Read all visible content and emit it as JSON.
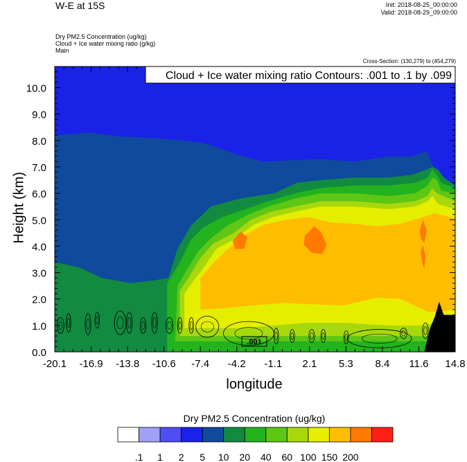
{
  "header": {
    "title": "W-E at 15S",
    "init": "Init: 2018-08-25_00:00:00",
    "valid": "Valid: 2018-08-29_09:00:00"
  },
  "fields": {
    "line1": "Dry PM2.5 Concentration   (ug/kg)",
    "line2": "Cloud + Ice water mixing ratio   (g/kg)",
    "line3": "Main"
  },
  "cross_section": "Cross-Section: (130,279) to (454,279)",
  "contour_box": "Cloud + Ice water mixing ratio Contours: .001 to .1 by .099",
  "contour_label": ".001",
  "chart_data": {
    "type": "heatmap",
    "xlabel": "longitude",
    "ylabel": "Height (km)",
    "x_ticks": [
      "-20.1",
      "-16.9",
      "-13.8",
      "-10.6",
      "-7.4",
      "-4.2",
      "-1.1",
      "2.1",
      "5.3",
      "8.4",
      "11.6",
      "14.8"
    ],
    "y_ticks": [
      "0.0",
      "1.0",
      "2.0",
      "3.0",
      "4.0",
      "5.0",
      "6.0",
      "7.0",
      "8.0",
      "9.0",
      "10.0"
    ],
    "xlim": [
      -20.1,
      14.8
    ],
    "ylim": [
      0,
      10.8
    ],
    "colorbar": {
      "title": "Dry PM2.5 Concentration  (ug/kg)",
      "levels": [
        ".1",
        "1",
        "2",
        "5",
        "10",
        "20",
        "40",
        "60",
        "100",
        "150",
        "200"
      ],
      "colors": [
        "#ffffff",
        "#a0a0f6",
        "#4e4ef2",
        "#1a22e8",
        "#0f4a9c",
        "#128a40",
        "#22b31e",
        "#5ec614",
        "#a8d80c",
        "#e6ee00",
        "#ffbd00",
        "#ff7a00",
        "#ff1e14"
      ]
    },
    "layers": [
      {
        "level": "5",
        "color": "#1a22e8",
        "outline": [
          [
            -20.1,
            0
          ],
          [
            14.8,
            0
          ],
          [
            14.8,
            10.8
          ],
          [
            -20.1,
            10.8
          ]
        ]
      },
      {
        "level": "10",
        "color": "#0f4a9c",
        "outline": [
          [
            -20.1,
            0
          ],
          [
            -20.1,
            8.2
          ],
          [
            -17.0,
            8.3
          ],
          [
            -14.5,
            8.15
          ],
          [
            -11.5,
            8.1
          ],
          [
            -9.0,
            8.0
          ],
          [
            -7.0,
            7.9
          ],
          [
            -4.5,
            7.5
          ],
          [
            -2.0,
            7.2
          ],
          [
            0.5,
            7.25
          ],
          [
            3.0,
            7.3
          ],
          [
            6.0,
            7.2
          ],
          [
            9.0,
            7.4
          ],
          [
            11.0,
            7.4
          ],
          [
            12.3,
            7.6
          ],
          [
            12.8,
            7.1
          ],
          [
            13.3,
            6.7
          ],
          [
            14.8,
            6.3
          ],
          [
            14.8,
            0
          ]
        ]
      },
      {
        "level": "20",
        "color": "#128a40",
        "outline": [
          [
            -20.1,
            0
          ],
          [
            -20.1,
            3.4
          ],
          [
            -18.0,
            3.2
          ],
          [
            -16.0,
            2.8
          ],
          [
            -13.5,
            2.6
          ],
          [
            -11.5,
            2.7
          ],
          [
            -10.2,
            2.8
          ],
          [
            -9.4,
            3.9
          ],
          [
            -8.2,
            4.8
          ],
          [
            -6.5,
            5.5
          ],
          [
            -4.0,
            5.8
          ],
          [
            -1.0,
            6.0
          ],
          [
            1.0,
            6.4
          ],
          [
            3.0,
            6.5
          ],
          [
            6.0,
            6.6
          ],
          [
            9.0,
            6.6
          ],
          [
            11.0,
            6.7
          ],
          [
            12.3,
            6.9
          ],
          [
            12.8,
            7.0
          ],
          [
            13.3,
            6.9
          ],
          [
            13.8,
            6.6
          ],
          [
            14.8,
            6.3
          ],
          [
            14.8,
            0
          ]
        ]
      },
      {
        "level": "40",
        "color": "#22b31e",
        "outline": [
          [
            -10.3,
            0
          ],
          [
            -10.3,
            2.6
          ],
          [
            -9.3,
            3.3
          ],
          [
            -8.3,
            4.2
          ],
          [
            -7.2,
            4.7
          ],
          [
            -5.5,
            5.1
          ],
          [
            -3.5,
            5.4
          ],
          [
            -1.5,
            5.7
          ],
          [
            0.8,
            6.0
          ],
          [
            3.0,
            6.2
          ],
          [
            6.0,
            6.3
          ],
          [
            9.0,
            6.3
          ],
          [
            11.3,
            6.4
          ],
          [
            12.4,
            6.6
          ],
          [
            12.8,
            6.9
          ],
          [
            13.2,
            6.7
          ],
          [
            13.6,
            6.4
          ],
          [
            14.8,
            6.2
          ],
          [
            14.8,
            0
          ]
        ]
      },
      {
        "level": "60",
        "color": "#5ec614",
        "outline": [
          [
            -9.6,
            0.4
          ],
          [
            -9.4,
            2.5
          ],
          [
            -8.6,
            3.1
          ],
          [
            -7.6,
            3.8
          ],
          [
            -6.5,
            4.3
          ],
          [
            -5.0,
            4.8
          ],
          [
            -3.2,
            5.2
          ],
          [
            -1.5,
            5.5
          ],
          [
            0.8,
            5.8
          ],
          [
            3.0,
            6.0
          ],
          [
            6.0,
            6.0
          ],
          [
            9.0,
            5.9
          ],
          [
            11.3,
            6.0
          ],
          [
            12.4,
            6.3
          ],
          [
            12.8,
            6.6
          ],
          [
            13.2,
            6.5
          ],
          [
            13.6,
            6.1
          ],
          [
            14.8,
            6.0
          ],
          [
            14.8,
            0.4
          ]
        ]
      },
      {
        "level": "100",
        "color": "#a8d80c",
        "outline": [
          [
            -9.2,
            0.6
          ],
          [
            -9.2,
            2.3
          ],
          [
            -8.3,
            2.9
          ],
          [
            -7.5,
            3.5
          ],
          [
            -6.3,
            4.1
          ],
          [
            -4.5,
            4.5
          ],
          [
            -3.0,
            5.0
          ],
          [
            -1.3,
            5.3
          ],
          [
            0.8,
            5.5
          ],
          [
            3.0,
            5.7
          ],
          [
            6.0,
            5.7
          ],
          [
            9.0,
            5.6
          ],
          [
            11.3,
            5.7
          ],
          [
            12.4,
            5.9
          ],
          [
            12.8,
            6.2
          ],
          [
            13.2,
            6.0
          ],
          [
            14.8,
            5.7
          ],
          [
            14.8,
            0.6
          ]
        ]
      },
      {
        "level": "150",
        "color": "#e6ee00",
        "outline": [
          [
            -8.8,
            0.9
          ],
          [
            -8.8,
            2.2
          ],
          [
            -8.0,
            2.7
          ],
          [
            -7.1,
            3.2
          ],
          [
            -6.0,
            3.9
          ],
          [
            -4.3,
            4.3
          ],
          [
            -2.8,
            4.8
          ],
          [
            -1.1,
            5.1
          ],
          [
            0.8,
            5.3
          ],
          [
            3.0,
            5.5
          ],
          [
            6.0,
            5.5
          ],
          [
            9.0,
            5.4
          ],
          [
            11.3,
            5.5
          ],
          [
            12.4,
            5.7
          ],
          [
            12.8,
            5.9
          ],
          [
            13.3,
            5.6
          ],
          [
            14.8,
            5.4
          ],
          [
            14.8,
            1.2
          ],
          [
            11.8,
            1.0
          ],
          [
            9.0,
            1.0
          ],
          [
            5.0,
            1.1
          ],
          [
            2.0,
            1.1
          ],
          [
            -1.0,
            1.0
          ],
          [
            -4.0,
            0.9
          ]
        ]
      },
      {
        "level": "200",
        "color": "#ffbd00",
        "outline": [
          [
            -7.4,
            1.6
          ],
          [
            -7.4,
            2.8
          ],
          [
            -6.2,
            3.4
          ],
          [
            -5.0,
            3.9
          ],
          [
            -3.6,
            4.4
          ],
          [
            -2.0,
            4.8
          ],
          [
            0.0,
            5.0
          ],
          [
            2.0,
            5.1
          ],
          [
            4.0,
            4.9
          ],
          [
            6.0,
            4.85
          ],
          [
            8.0,
            4.75
          ],
          [
            10.0,
            4.85
          ],
          [
            11.6,
            5.05
          ],
          [
            13.0,
            5.25
          ],
          [
            14.8,
            5.05
          ],
          [
            14.8,
            1.6
          ],
          [
            12.5,
            1.5
          ],
          [
            10.0,
            2.0
          ],
          [
            8.0,
            2.05
          ],
          [
            5.0,
            1.75
          ],
          [
            2.0,
            1.8
          ],
          [
            0.0,
            1.85
          ],
          [
            -3.0,
            1.75
          ],
          [
            -5.5,
            1.65
          ]
        ]
      },
      {
        "level": "200",
        "color": "#ff7a00",
        "outline": [
          [
            -4.6,
            4.2
          ],
          [
            -3.9,
            4.55
          ],
          [
            -3.3,
            4.35
          ],
          [
            -3.6,
            3.9
          ],
          [
            -4.4,
            3.9
          ]
        ]
      },
      {
        "level": "200",
        "color": "#ff7a00",
        "outline": [
          [
            1.7,
            4.4
          ],
          [
            2.5,
            4.75
          ],
          [
            3.1,
            4.55
          ],
          [
            3.6,
            4.05
          ],
          [
            3.2,
            3.7
          ],
          [
            2.3,
            3.75
          ],
          [
            1.6,
            4.05
          ]
        ]
      },
      {
        "level": "200",
        "color": "#ff7a00",
        "outline": [
          [
            11.7,
            4.6
          ],
          [
            12.0,
            5.0
          ],
          [
            12.3,
            4.6
          ],
          [
            12.1,
            4.1
          ],
          [
            11.8,
            4.3
          ]
        ]
      },
      {
        "level": "200",
        "color": "#ff7a00",
        "outline": [
          [
            11.8,
            3.8
          ],
          [
            12.0,
            4.05
          ],
          [
            12.2,
            3.6
          ],
          [
            12.1,
            3.15
          ],
          [
            11.9,
            3.4
          ]
        ]
      }
    ],
    "terrain": {
      "color": "#000000",
      "outline": [
        [
          12.1,
          0
        ],
        [
          12.6,
          0.9
        ],
        [
          13.0,
          1.3
        ],
        [
          13.4,
          1.9
        ],
        [
          13.8,
          1.4
        ],
        [
          14.8,
          1.4
        ],
        [
          14.8,
          0
        ]
      ]
    },
    "contours": [
      {
        "cx": -19.6,
        "cy": 1.0,
        "rx": 0.3,
        "ry": 0.3
      },
      {
        "cx": -18.9,
        "cy": 1.1,
        "rx": 0.2,
        "ry": 0.35
      },
      {
        "cx": -17.2,
        "cy": 1.05,
        "rx": 0.25,
        "ry": 0.4
      },
      {
        "cx": -16.4,
        "cy": 1.2,
        "rx": 0.2,
        "ry": 0.3
      },
      {
        "cx": -14.4,
        "cy": 1.1,
        "rx": 0.5,
        "ry": 0.45
      },
      {
        "cx": -13.6,
        "cy": 1.1,
        "rx": 0.25,
        "ry": 0.4
      },
      {
        "cx": -12.4,
        "cy": 1.0,
        "rx": 0.25,
        "ry": 0.3
      },
      {
        "cx": -11.4,
        "cy": 1.1,
        "rx": 0.25,
        "ry": 0.4
      },
      {
        "cx": -10.1,
        "cy": 1.0,
        "rx": 0.3,
        "ry": 0.3
      },
      {
        "cx": -9.2,
        "cy": 1.0,
        "rx": 0.2,
        "ry": 0.3
      },
      {
        "cx": -8.2,
        "cy": 1.0,
        "rx": 0.2,
        "ry": 0.3
      },
      {
        "cx": -6.8,
        "cy": 0.95,
        "rx": 1.0,
        "ry": 0.4
      },
      {
        "cx": -3.2,
        "cy": 0.7,
        "rx": 2.2,
        "ry": 0.45
      },
      {
        "cx": -0.8,
        "cy": 0.6,
        "rx": 0.2,
        "ry": 0.3
      },
      {
        "cx": 0.6,
        "cy": 0.6,
        "rx": 0.2,
        "ry": 0.25
      },
      {
        "cx": 2.3,
        "cy": 0.6,
        "rx": 0.25,
        "ry": 0.25
      },
      {
        "cx": 3.3,
        "cy": 0.6,
        "rx": 0.2,
        "ry": 0.25
      },
      {
        "cx": 5.3,
        "cy": 0.55,
        "rx": 0.2,
        "ry": 0.25
      },
      {
        "cx": 8.2,
        "cy": 0.5,
        "rx": 2.8,
        "ry": 0.35
      },
      {
        "cx": 10.3,
        "cy": 0.7,
        "rx": 0.3,
        "ry": 0.2
      },
      {
        "cx": 12.2,
        "cy": 0.8,
        "rx": 0.25,
        "ry": 0.3
      }
    ]
  }
}
